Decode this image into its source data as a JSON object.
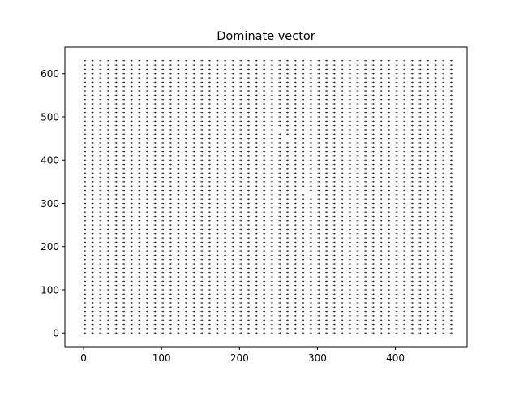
{
  "chart_data": {
    "type": "quiver",
    "title": "Dominate vector",
    "xlabel": "",
    "ylabel": "",
    "xlim": [
      -24,
      492
    ],
    "ylim": [
      -31.5,
      661.5
    ],
    "x_ticks": [
      0,
      100,
      200,
      300,
      400
    ],
    "y_ticks": [
      0,
      100,
      200,
      300,
      400,
      500,
      600
    ],
    "grid": false,
    "legend": "none",
    "arrow_color": "#000000",
    "vector_field": {
      "x_start": 0,
      "x_stop": 470,
      "x_step": 10,
      "y_start": 0,
      "y_stop": 630,
      "y_step": 10,
      "default_vector": {
        "u": 1,
        "v": 0
      },
      "missing_points": [
        [
          290,
          320
        ],
        [
          280,
          330
        ],
        [
          260,
          450
        ],
        [
          250,
          470
        ]
      ]
    }
  }
}
